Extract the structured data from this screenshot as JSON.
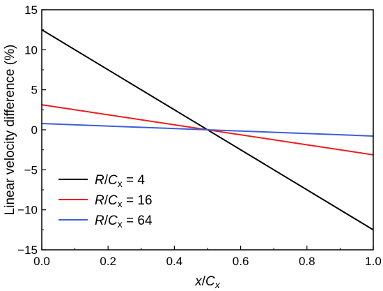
{
  "chart_data": {
    "type": "line",
    "title": "",
    "xlabel": {
      "var": "x",
      "sep": "/",
      "denom": "C",
      "sub": "x"
    },
    "ylabel": "Linear velocity difference (%)",
    "xlim": [
      0.0,
      1.0
    ],
    "ylim": [
      -15,
      15
    ],
    "x_ticks": [
      0.0,
      0.2,
      0.4,
      0.6,
      0.8,
      1.0
    ],
    "x_tick_labels": [
      "0.0",
      "0.2",
      "0.4",
      "0.6",
      "0.8",
      "1.0"
    ],
    "y_ticks": [
      -15,
      -10,
      -5,
      0,
      5,
      10,
      15
    ],
    "y_tick_labels": [
      "−15",
      "−10",
      "−5",
      "0",
      "5",
      "10",
      "15"
    ],
    "grid": false,
    "legend_position": "lower-left",
    "series": [
      {
        "name": "R/Cx = 4",
        "legend": {
          "var": "R",
          "sep": "/",
          "denom": "C",
          "sub": "x",
          "eq": " = 4"
        },
        "color": "#000000",
        "x": [
          0.0,
          1.0
        ],
        "y": [
          12.5,
          -12.5
        ]
      },
      {
        "name": "R/Cx = 16",
        "legend": {
          "var": "R",
          "sep": "/",
          "denom": "C",
          "sub": "x",
          "eq": " = 16"
        },
        "color": "#ee1c1c",
        "x": [
          0.0,
          1.0
        ],
        "y": [
          3.125,
          -3.125
        ]
      },
      {
        "name": "R/Cx = 64",
        "legend": {
          "var": "R",
          "sep": "/",
          "denom": "C",
          "sub": "x",
          "eq": " = 64"
        },
        "color": "#3b5fd9",
        "x": [
          0.0,
          1.0
        ],
        "y": [
          0.78,
          -0.78
        ]
      }
    ]
  }
}
